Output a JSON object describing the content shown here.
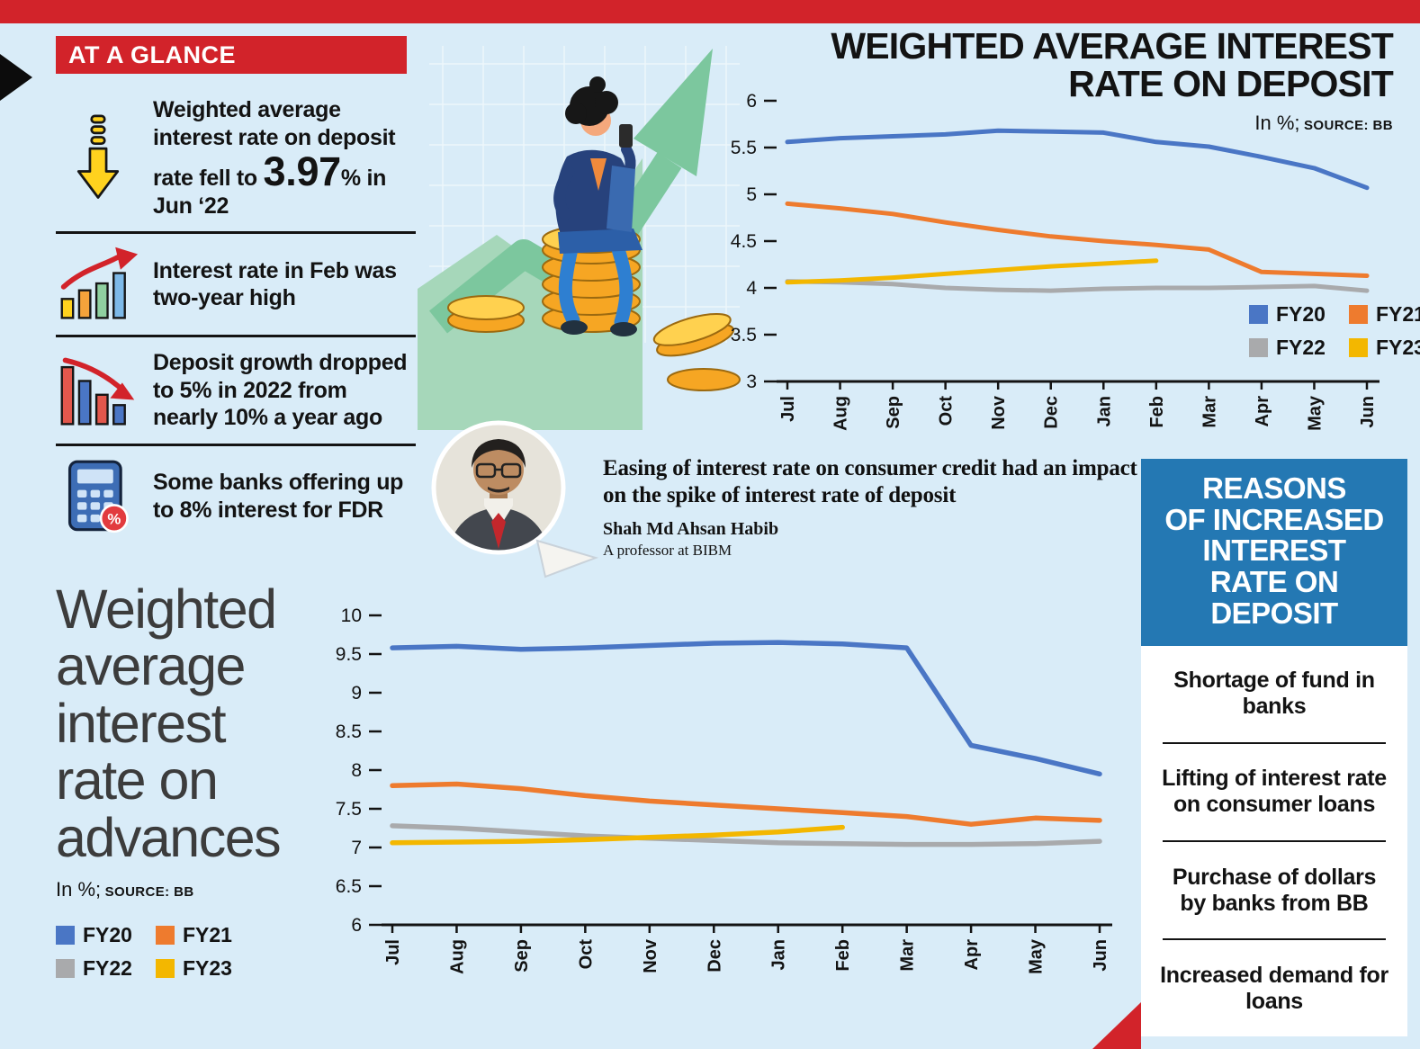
{
  "palette": {
    "red": "#d2232a",
    "background": "#d9ecf8",
    "ink": "#0c0c0c",
    "reasons_blue": "#2478b3",
    "fy20": "#4a76c5",
    "fy21": "#ee7b2e",
    "fy22": "#a9aaac",
    "fy23": "#f3b700"
  },
  "at_a_glance": {
    "title": "AT A GLANCE",
    "items": [
      {
        "icon": "falling-rate-icon",
        "lead": "Weighted average interest rate on deposit rate fell to ",
        "big": "3.97",
        "unit": "%",
        "tail": " in Jun ‘22"
      },
      {
        "icon": "rising-bars-icon",
        "text": "Interest rate in Feb was two-year high"
      },
      {
        "icon": "falling-bars-icon",
        "text": "Deposit growth dropped to 5% in 2022 from nearly 10% a year ago"
      },
      {
        "icon": "calculator-icon",
        "text": "Some banks offering up to 8% interest for FDR"
      }
    ]
  },
  "notes": {
    "unit": "In %;",
    "source": "SOURCE: BB"
  },
  "sections": {
    "deposit": {
      "title_display": "WEIGHTED AVERAGE INTEREST\nRATE ON DEPOSIT"
    },
    "advances": {
      "title_display": "Weighted\naverage\ninterest\nrate on\nadvances"
    }
  },
  "quote": {
    "text": "Easing of interest rate on consumer credit had an impact on the spike of interest rate of deposit",
    "name": "Shah Md Ahsan Habib",
    "role": "A professor at BIBM"
  },
  "reasons": {
    "title": "REASONS\nOF INCREASED\nINTEREST\nRATE ON\nDEPOSIT",
    "items": [
      "Shortage of fund in banks",
      "Lifting of interest rate on consumer loans",
      "Purchase of dollars by banks from BB",
      "Increased demand for loans"
    ]
  },
  "chart_data": [
    {
      "id": "deposit-rate",
      "type": "line",
      "title": "Weighted average interest rate on deposit",
      "unit": "%",
      "source": "BB",
      "categories": [
        "Jul",
        "Aug",
        "Sep",
        "Oct",
        "Nov",
        "Dec",
        "Jan",
        "Feb",
        "Mar",
        "Apr",
        "May",
        "Jun"
      ],
      "ylim": [
        3,
        6
      ],
      "yticks": [
        3,
        3.5,
        4,
        4.5,
        5,
        5.5,
        6
      ],
      "grid": false,
      "legend_position": "inside-bottom-right",
      "series": [
        {
          "name": "FY20",
          "values": [
            5.56,
            5.6,
            5.62,
            5.64,
            5.68,
            5.67,
            5.66,
            5.56,
            5.51,
            5.4,
            5.28,
            5.07
          ]
        },
        {
          "name": "FY21",
          "values": [
            4.9,
            4.85,
            4.79,
            4.7,
            4.62,
            4.55,
            4.5,
            4.46,
            4.41,
            4.17,
            4.15,
            4.13
          ]
        },
        {
          "name": "FY22",
          "values": [
            4.07,
            4.06,
            4.04,
            4.0,
            3.98,
            3.97,
            3.99,
            4.0,
            4.0,
            4.01,
            4.02,
            3.97
          ]
        },
        {
          "name": "FY23",
          "values": [
            4.06,
            4.08,
            4.11,
            4.15,
            4.19,
            4.23,
            4.26,
            4.29,
            null,
            null,
            null,
            null
          ]
        }
      ]
    },
    {
      "id": "advances-rate",
      "type": "line",
      "title": "Weighted average interest rate on advances",
      "unit": "%",
      "source": "BB",
      "categories": [
        "Jul",
        "Aug",
        "Sep",
        "Oct",
        "Nov",
        "Dec",
        "Jan",
        "Feb",
        "Mar",
        "Apr",
        "May",
        "Jun"
      ],
      "ylim": [
        6,
        10
      ],
      "yticks": [
        6,
        6.5,
        7,
        7.5,
        8,
        8.5,
        9,
        9.5,
        10
      ],
      "grid": false,
      "legend_position": "outside-left",
      "series": [
        {
          "name": "FY20",
          "values": [
            9.58,
            9.6,
            9.56,
            9.58,
            9.61,
            9.64,
            9.65,
            9.63,
            9.58,
            8.32,
            8.15,
            7.95
          ]
        },
        {
          "name": "FY21",
          "values": [
            7.8,
            7.82,
            7.76,
            7.67,
            7.6,
            7.55,
            7.5,
            7.45,
            7.4,
            7.3,
            7.38,
            7.35
          ]
        },
        {
          "name": "FY22",
          "values": [
            7.28,
            7.25,
            7.2,
            7.15,
            7.12,
            7.09,
            7.06,
            7.05,
            7.04,
            7.04,
            7.05,
            7.08
          ]
        },
        {
          "name": "FY23",
          "values": [
            7.06,
            7.07,
            7.08,
            7.1,
            7.13,
            7.16,
            7.2,
            7.26,
            null,
            null,
            null,
            null
          ]
        }
      ]
    }
  ]
}
